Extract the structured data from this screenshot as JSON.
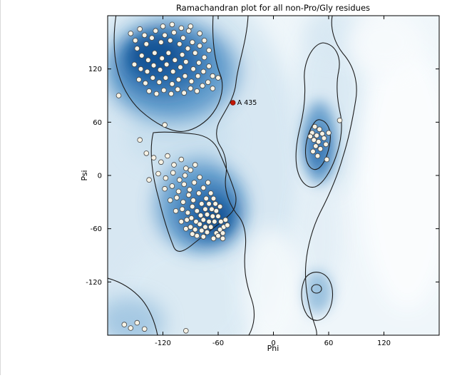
{
  "figure": {
    "kind": "matplotlib-style Ramachandran plot"
  },
  "colors": {
    "plot_background": "#eff6fa",
    "density_light": "#cfe3f0",
    "density_mid": "#4a8cc4",
    "density_dark": "#114e90",
    "contour_line": "#1c1c1c",
    "marker_fill": "#f7f3e6",
    "marker_edge": "#444444",
    "outlier_fill": "#c21807",
    "frame": "#000000"
  },
  "chart_data": {
    "type": "scatter",
    "title": "Ramachandran plot for all non-Pro/Gly residues",
    "xlabel": "Phi",
    "ylabel": "Psi",
    "xlim": [
      -180,
      180
    ],
    "ylim": [
      -180,
      180
    ],
    "xticks": [
      -120,
      -60,
      0,
      60,
      120
    ],
    "yticks": [
      -120,
      -60,
      0,
      60,
      120
    ],
    "grid": false,
    "legend": "none",
    "annotations": [
      {
        "text": "A 435",
        "x": -44,
        "y": 82
      }
    ],
    "series": [
      {
        "name": "residue",
        "marker": "circle",
        "color": "#f7f3e6",
        "edge": "#444444",
        "size": 3.4,
        "points": [
          [
            -155,
            160
          ],
          [
            -150,
            152
          ],
          [
            -145,
            165
          ],
          [
            -140,
            158
          ],
          [
            -148,
            143
          ],
          [
            -138,
            148
          ],
          [
            -132,
            155
          ],
          [
            -128,
            163
          ],
          [
            -122,
            150
          ],
          [
            -118,
            158
          ],
          [
            -112,
            152
          ],
          [
            -108,
            161
          ],
          [
            -102,
            148
          ],
          [
            -98,
            155
          ],
          [
            -92,
            163
          ],
          [
            -88,
            150
          ],
          [
            -143,
            135
          ],
          [
            -136,
            130
          ],
          [
            -129,
            138
          ],
          [
            -121,
            132
          ],
          [
            -114,
            138
          ],
          [
            -107,
            130
          ],
          [
            -99,
            136
          ],
          [
            -93,
            143
          ],
          [
            -85,
            138
          ],
          [
            -80,
            146
          ],
          [
            -151,
            125
          ],
          [
            -144,
            120
          ],
          [
            -137,
            117
          ],
          [
            -130,
            124
          ],
          [
            -123,
            119
          ],
          [
            -116,
            125
          ],
          [
            -109,
            117
          ],
          [
            -101,
            122
          ],
          [
            -95,
            128
          ],
          [
            -87,
            120
          ],
          [
            -81,
            127
          ],
          [
            -75,
            133
          ],
          [
            -70,
            141
          ],
          [
            -146,
            108
          ],
          [
            -139,
            104
          ],
          [
            -131,
            110
          ],
          [
            -124,
            105
          ],
          [
            -117,
            110
          ],
          [
            -110,
            103
          ],
          [
            -103,
            108
          ],
          [
            -96,
            112
          ],
          [
            -89,
            106
          ],
          [
            -82,
            112
          ],
          [
            -76,
            117
          ],
          [
            -70,
            123
          ],
          [
            -66,
            112
          ],
          [
            -135,
            95
          ],
          [
            -127,
            92
          ],
          [
            -119,
            96
          ],
          [
            -111,
            92
          ],
          [
            -104,
            97
          ],
          [
            -97,
            93
          ],
          [
            -90,
            98
          ],
          [
            -83,
            95
          ],
          [
            -77,
            101
          ],
          [
            -71,
            105
          ],
          [
            -66,
            98
          ],
          [
            -60,
            110
          ],
          [
            -120,
            168
          ],
          [
            -110,
            170
          ],
          [
            -100,
            166
          ],
          [
            -90,
            168
          ],
          [
            -80,
            160
          ],
          [
            -75,
            152
          ],
          [
            -168,
            90
          ],
          [
            -118,
            57
          ],
          [
            -130,
            20
          ],
          [
            -122,
            15
          ],
          [
            -115,
            22
          ],
          [
            -108,
            12
          ],
          [
            -100,
            18
          ],
          [
            -95,
            8
          ],
          [
            -125,
            2
          ],
          [
            -117,
            -3
          ],
          [
            -109,
            3
          ],
          [
            -102,
            -5
          ],
          [
            -96,
            0
          ],
          [
            -90,
            6
          ],
          [
            -85,
            12
          ],
          [
            -118,
            -15
          ],
          [
            -110,
            -12
          ],
          [
            -103,
            -18
          ],
          [
            -97,
            -10
          ],
          [
            -91,
            -16
          ],
          [
            -86,
            -8
          ],
          [
            -80,
            -2
          ],
          [
            -112,
            -28
          ],
          [
            -105,
            -25
          ],
          [
            -98,
            -30
          ],
          [
            -92,
            -22
          ],
          [
            -87,
            -28
          ],
          [
            -81,
            -20
          ],
          [
            -76,
            -14
          ],
          [
            -71,
            -8
          ],
          [
            -106,
            -40
          ],
          [
            -99,
            -38
          ],
          [
            -93,
            -42
          ],
          [
            -88,
            -35
          ],
          [
            -83,
            -40
          ],
          [
            -78,
            -32
          ],
          [
            -73,
            -26
          ],
          [
            -68,
            -20
          ],
          [
            -100,
            -52
          ],
          [
            -94,
            -50
          ],
          [
            -89,
            -48
          ],
          [
            -84,
            -52
          ],
          [
            -79,
            -45
          ],
          [
            -74,
            -38
          ],
          [
            -70,
            -32
          ],
          [
            -65,
            -26
          ],
          [
            -95,
            -60
          ],
          [
            -90,
            -58
          ],
          [
            -85,
            -61
          ],
          [
            -80,
            -55
          ],
          [
            -76,
            -50
          ],
          [
            -72,
            -44
          ],
          [
            -67,
            -38
          ],
          [
            -63,
            -32
          ],
          [
            -88,
            -66
          ],
          [
            -83,
            -68
          ],
          [
            -78,
            -62
          ],
          [
            -74,
            -58
          ],
          [
            -70,
            -52
          ],
          [
            -66,
            -46
          ],
          [
            -62,
            -40
          ],
          [
            -58,
            -35
          ],
          [
            -76,
            -69
          ],
          [
            -72,
            -64
          ],
          [
            -68,
            -58
          ],
          [
            -64,
            -52
          ],
          [
            -60,
            -46
          ],
          [
            -57,
            -52
          ],
          [
            -54,
            -58
          ],
          [
            -62,
            -65
          ],
          [
            -58,
            -61
          ],
          [
            -55,
            -65
          ],
          [
            -52,
            -50
          ],
          [
            -50,
            -56
          ],
          [
            -65,
            -71
          ],
          [
            -60,
            -68
          ],
          [
            -55,
            -71
          ],
          [
            -135,
            -5
          ],
          [
            -138,
            25
          ],
          [
            -145,
            40
          ],
          [
            45,
            55
          ],
          [
            50,
            52
          ],
          [
            42,
            48
          ],
          [
            47,
            45
          ],
          [
            53,
            47
          ],
          [
            44,
            40
          ],
          [
            49,
            38
          ],
          [
            55,
            42
          ],
          [
            46,
            33
          ],
          [
            51,
            30
          ],
          [
            43,
            27
          ],
          [
            48,
            22
          ],
          [
            57,
            35
          ],
          [
            60,
            48
          ],
          [
            72,
            62
          ],
          [
            58,
            18
          ],
          [
            40,
            44
          ],
          [
            -162,
            -168
          ],
          [
            -155,
            -172
          ],
          [
            -148,
            -166
          ],
          [
            -140,
            -173
          ],
          [
            -95,
            -175
          ]
        ]
      },
      {
        "name": "outlier-residue",
        "marker": "circle",
        "color": "#c21807",
        "edge": "#7a0f04",
        "size": 3.4,
        "points": [
          [
            -44,
            82
          ]
        ]
      }
    ]
  }
}
